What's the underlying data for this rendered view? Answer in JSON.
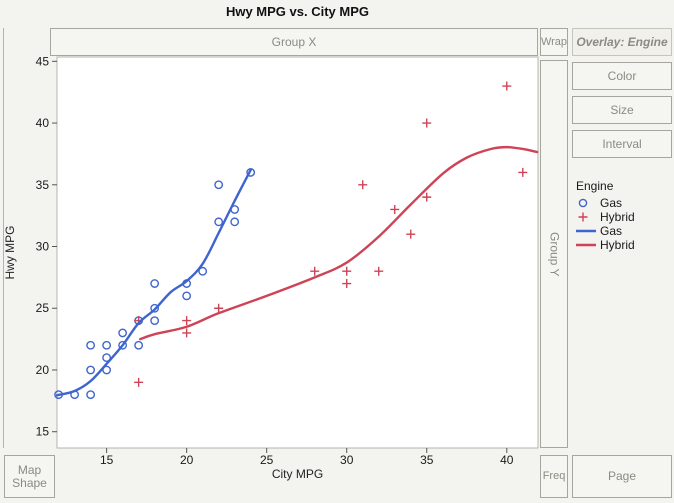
{
  "title": "Hwy MPG vs. City MPG",
  "drop_zones": {
    "group_x": "Group X",
    "wrap": "Wrap",
    "overlay": "Overlay: Engine",
    "group_y": "Group Y",
    "color": "Color",
    "size": "Size",
    "interval": "Interval",
    "map_shape_line1": "Map",
    "map_shape_line2": "Shape",
    "freq": "Freq",
    "page": "Page"
  },
  "legend": {
    "title": "Engine",
    "items": [
      {
        "label": "Gas",
        "marker": "circle",
        "color": "#3E64CE"
      },
      {
        "label": "Hybrid",
        "marker": "plus",
        "color": "#CE4356"
      },
      {
        "label": "Gas",
        "marker": "line",
        "color": "#3E64CE"
      },
      {
        "label": "Hybrid",
        "marker": "line",
        "color": "#CE4356"
      }
    ]
  },
  "chart_data": {
    "type": "scatter",
    "title": "Hwy MPG vs. City MPG",
    "xlabel": "City MPG",
    "ylabel": "Hwy MPG",
    "xlim": [
      11.9,
      41.95
    ],
    "ylim": [
      13.68,
      45.35
    ],
    "xticks": [
      15,
      20,
      25,
      30,
      35,
      40
    ],
    "yticks": [
      15,
      20,
      25,
      30,
      35,
      40,
      45
    ],
    "grid": false,
    "legend_position": "right",
    "series": [
      {
        "name": "Gas",
        "marker": "circle",
        "color": "#3E64CE",
        "points": [
          [
            12,
            18
          ],
          [
            13,
            18
          ],
          [
            14,
            18
          ],
          [
            14,
            20
          ],
          [
            15,
            20
          ],
          [
            15,
            21
          ],
          [
            14,
            22
          ],
          [
            15,
            22
          ],
          [
            16,
            22
          ],
          [
            17,
            22
          ],
          [
            16,
            23
          ],
          [
            17,
            24
          ],
          [
            18,
            24
          ],
          [
            18,
            25
          ],
          [
            18,
            27
          ],
          [
            20,
            26
          ],
          [
            20,
            27
          ],
          [
            21,
            28
          ],
          [
            22,
            32
          ],
          [
            23,
            32
          ],
          [
            23,
            33
          ],
          [
            22,
            35
          ],
          [
            24,
            36
          ]
        ]
      },
      {
        "name": "Hybrid",
        "marker": "plus",
        "color": "#CE4356",
        "points": [
          [
            17,
            19
          ],
          [
            17,
            24
          ],
          [
            20,
            23
          ],
          [
            20,
            24
          ],
          [
            22,
            25
          ],
          [
            28,
            28
          ],
          [
            30,
            27
          ],
          [
            30,
            28
          ],
          [
            31,
            35
          ],
          [
            32,
            28
          ],
          [
            33,
            33
          ],
          [
            34,
            31
          ],
          [
            35,
            34
          ],
          [
            35,
            40
          ],
          [
            40,
            43
          ],
          [
            41,
            36
          ]
        ]
      }
    ],
    "smoothers": [
      {
        "name": "Gas",
        "color": "#3E64CE",
        "points": [
          [
            11.9,
            17.95
          ],
          [
            13,
            18.3
          ],
          [
            14,
            19.1
          ],
          [
            15,
            20.5
          ],
          [
            16,
            22.0
          ],
          [
            17,
            23.8
          ],
          [
            18,
            24.9
          ],
          [
            19,
            26.3
          ],
          [
            20,
            27.2
          ],
          [
            21,
            28.6
          ],
          [
            22,
            31.1
          ],
          [
            23,
            33.7
          ],
          [
            24,
            36.2
          ]
        ]
      },
      {
        "name": "Hybrid",
        "color": "#CE4356",
        "points": [
          [
            17.1,
            22.5
          ],
          [
            18,
            22.9
          ],
          [
            20,
            23.5
          ],
          [
            22,
            24.6
          ],
          [
            25,
            26.0
          ],
          [
            28,
            27.5
          ],
          [
            30,
            28.7
          ],
          [
            32,
            30.8
          ],
          [
            34,
            33.4
          ],
          [
            36,
            35.9
          ],
          [
            37.5,
            37.2
          ],
          [
            39,
            37.9
          ],
          [
            40,
            38.05
          ],
          [
            41,
            37.9
          ],
          [
            41.9,
            37.65
          ]
        ]
      }
    ]
  }
}
